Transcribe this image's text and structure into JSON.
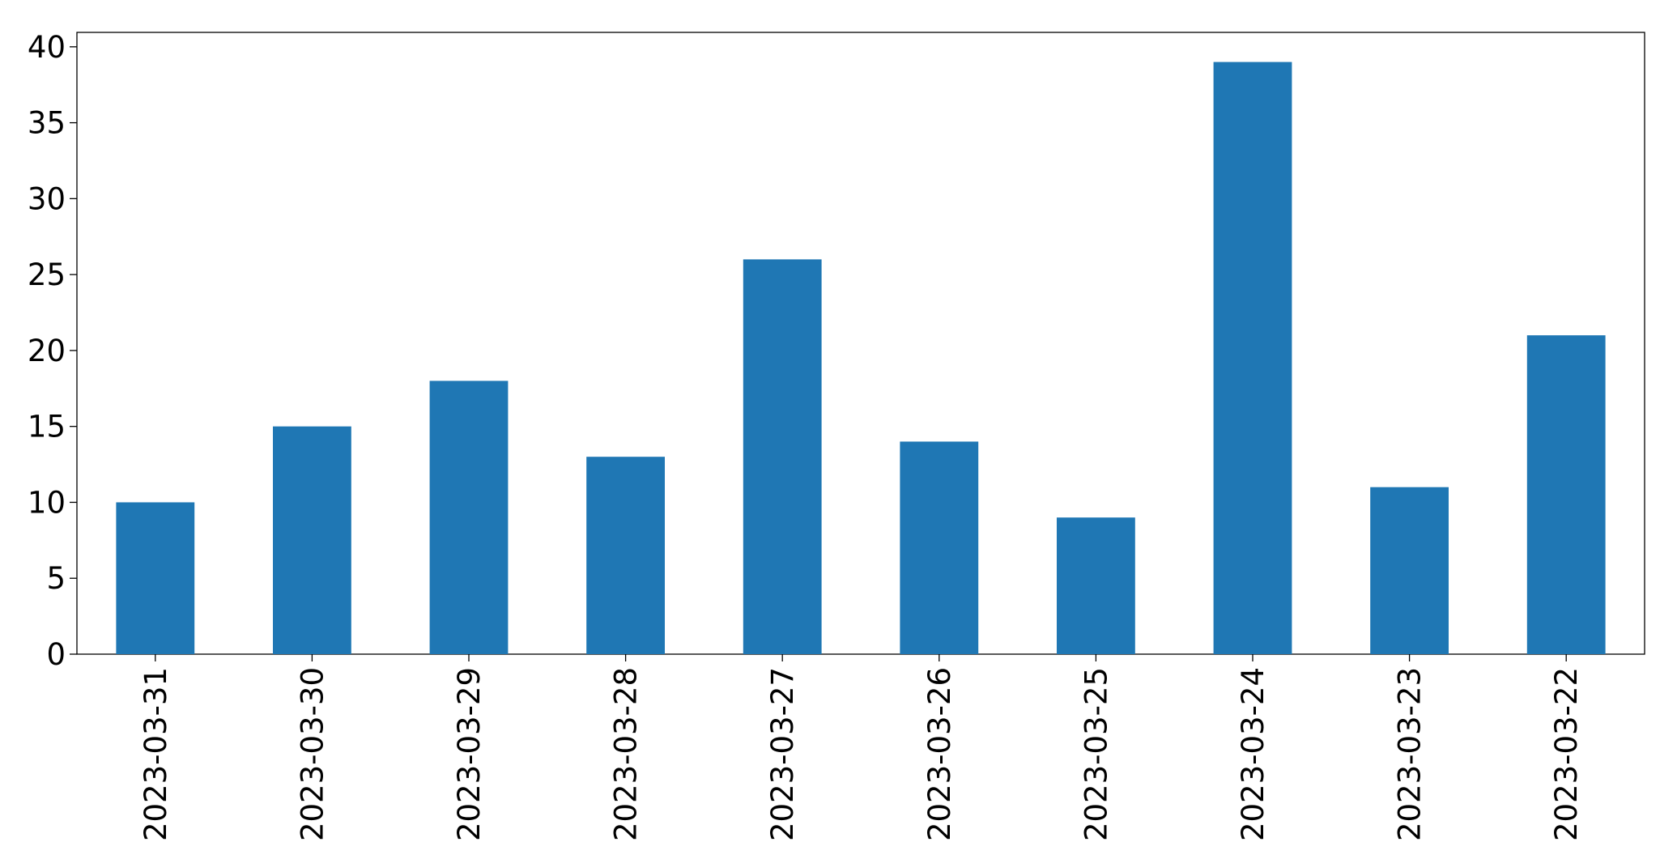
{
  "chart_data": {
    "type": "bar",
    "categories": [
      "2023-03-31",
      "2023-03-30",
      "2023-03-29",
      "2023-03-28",
      "2023-03-27",
      "2023-03-26",
      "2023-03-25",
      "2023-03-24",
      "2023-03-23",
      "2023-03-22"
    ],
    "values": [
      10,
      15,
      18,
      13,
      26,
      14,
      9,
      39,
      11,
      21
    ],
    "color": "#1f77b4",
    "ylim": [
      0,
      40.95
    ],
    "yticks": [
      0,
      5,
      10,
      15,
      20,
      25,
      30,
      35,
      40
    ],
    "grid": false
  }
}
